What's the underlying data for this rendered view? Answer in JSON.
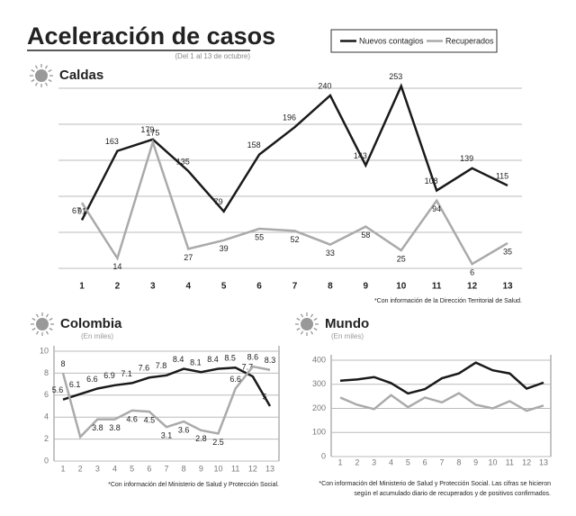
{
  "title": "Aceleración de casos",
  "subtitle": "(Del 1 al 13 de octubre)",
  "chart_data": [
    {
      "type": "line",
      "title": "Caldas",
      "note": "*Con información de la Dirección Territorial de Salud.",
      "categories": [
        "1",
        "2",
        "3",
        "4",
        "5",
        "6",
        "7",
        "8",
        "9",
        "10",
        "11",
        "12",
        "13"
      ],
      "ylim": [
        0,
        250
      ],
      "yticks": [
        0,
        50,
        100,
        150,
        200,
        250
      ],
      "ytick_labels": false,
      "grid": true,
      "data_labels": true,
      "series": [
        {
          "name": "Nuevos contagios",
          "color": "#1a1a1a",
          "values": [
            67,
            163,
            179,
            135,
            79,
            158,
            196,
            240,
            143,
            253,
            108,
            139,
            115
          ]
        },
        {
          "name": "Recuperados",
          "color": "#aaaaaa",
          "values": [
            91,
            14,
            175,
            27,
            39,
            55,
            52,
            33,
            58,
            25,
            94,
            6,
            35
          ]
        }
      ]
    },
    {
      "type": "line",
      "title": "Colombia",
      "subtitle": "(En miles)",
      "note": "*Con información del Ministerio de Salud y Protección Social.",
      "categories": [
        "1",
        "2",
        "3",
        "4",
        "5",
        "6",
        "7",
        "8",
        "9",
        "10",
        "11",
        "12",
        "13"
      ],
      "ylim": [
        0,
        10
      ],
      "yticks": [
        0,
        2,
        4,
        6,
        8,
        10
      ],
      "ytick_labels": true,
      "grid": true,
      "data_labels": true,
      "series": [
        {
          "name": "Nuevos contagios",
          "color": "#1a1a1a",
          "values": [
            5.6,
            6.1,
            6.6,
            6.9,
            7.1,
            7.6,
            7.8,
            8.4,
            8.1,
            8.4,
            8.5,
            7.7,
            5
          ]
        },
        {
          "name": "Recuperados",
          "color": "#aaaaaa",
          "values": [
            8,
            2.2,
            3.8,
            3.8,
            4.6,
            4.5,
            3.1,
            3.6,
            2.8,
            2.5,
            6.6,
            8.6,
            8.3
          ],
          "value_labels": [
            "8",
            null,
            "3.8",
            "3.8",
            "4.6",
            "4.5",
            "3.1",
            "3.6",
            "2.8",
            "2.5",
            "6.6",
            "8.6",
            "8.3"
          ]
        }
      ]
    },
    {
      "type": "line",
      "title": "Mundo",
      "subtitle": "(En miles)",
      "note": [
        "*Con información del Ministerio de Salud y Protección Social. Las cifras se hicieron",
        "según el acumulado diario de recuperados y de positivos confirmados."
      ],
      "categories": [
        "1",
        "2",
        "3",
        "4",
        "5",
        "6",
        "7",
        "8",
        "9",
        "10",
        "11",
        "12",
        "13"
      ],
      "ylim": [
        0,
        400
      ],
      "yticks": [
        0,
        100,
        200,
        300,
        400
      ],
      "ytick_labels": true,
      "grid": true,
      "data_labels": false,
      "series": [
        {
          "name": "Nuevos contagios",
          "color": "#1a1a1a",
          "values": [
            315,
            320,
            330,
            305,
            262,
            280,
            325,
            345,
            390,
            358,
            345,
            282,
            307
          ]
        },
        {
          "name": "Recuperados",
          "color": "#aaaaaa",
          "values": [
            245,
            215,
            197,
            255,
            205,
            245,
            225,
            263,
            215,
            200,
            230,
            190,
            212
          ]
        }
      ]
    }
  ]
}
